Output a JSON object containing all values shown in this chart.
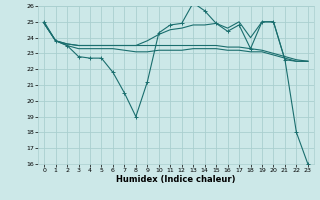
{
  "xlabel": "Humidex (Indice chaleur)",
  "xlim": [
    -0.5,
    23.5
  ],
  "ylim": [
    16,
    26
  ],
  "yticks": [
    16,
    17,
    18,
    19,
    20,
    21,
    22,
    23,
    24,
    25,
    26
  ],
  "xticks": [
    0,
    1,
    2,
    3,
    4,
    5,
    6,
    7,
    8,
    9,
    10,
    11,
    12,
    13,
    14,
    15,
    16,
    17,
    18,
    19,
    20,
    21,
    22,
    23
  ],
  "bg_color": "#cce8e8",
  "line_color": "#1a6e6e",
  "grid_color": "#aacfcf",
  "series": {
    "line1_x": [
      0,
      1,
      2,
      3,
      4,
      5,
      6,
      7,
      8,
      9,
      10,
      11,
      12,
      13,
      14,
      15,
      16,
      17,
      18,
      19,
      20,
      21,
      22,
      23
    ],
    "line1_y": [
      25.0,
      23.8,
      23.5,
      22.8,
      22.7,
      22.7,
      21.8,
      20.5,
      19.0,
      21.2,
      24.3,
      24.8,
      24.9,
      26.2,
      25.7,
      24.9,
      24.4,
      24.8,
      23.3,
      25.0,
      25.0,
      22.6,
      18.0,
      16.0
    ],
    "line2_x": [
      0,
      1,
      2,
      3,
      4,
      5,
      6,
      7,
      8,
      9,
      10,
      11,
      12,
      13,
      14,
      15,
      16,
      17,
      18,
      19,
      20,
      21,
      22,
      23
    ],
    "line2_y": [
      24.9,
      23.8,
      23.5,
      23.3,
      23.3,
      23.3,
      23.3,
      23.2,
      23.1,
      23.1,
      23.2,
      23.2,
      23.2,
      23.3,
      23.3,
      23.3,
      23.2,
      23.2,
      23.1,
      23.1,
      22.9,
      22.7,
      22.5,
      22.5
    ],
    "line3_x": [
      0,
      1,
      2,
      3,
      4,
      5,
      6,
      7,
      8,
      9,
      10,
      11,
      12,
      13,
      14,
      15,
      16,
      17,
      18,
      19,
      20,
      21,
      22,
      23
    ],
    "line3_y": [
      24.9,
      23.8,
      23.6,
      23.5,
      23.5,
      23.5,
      23.5,
      23.5,
      23.5,
      23.8,
      24.2,
      24.5,
      24.6,
      24.8,
      24.8,
      24.9,
      24.6,
      25.0,
      24.0,
      25.0,
      25.0,
      22.6,
      22.5,
      22.5
    ],
    "line4_x": [
      0,
      1,
      2,
      3,
      4,
      5,
      6,
      7,
      8,
      9,
      10,
      11,
      12,
      13,
      14,
      15,
      16,
      17,
      18,
      19,
      20,
      21,
      22,
      23
    ],
    "line4_y": [
      24.9,
      23.8,
      23.6,
      23.5,
      23.5,
      23.5,
      23.5,
      23.5,
      23.5,
      23.5,
      23.5,
      23.5,
      23.5,
      23.5,
      23.5,
      23.5,
      23.4,
      23.4,
      23.3,
      23.2,
      23.0,
      22.8,
      22.6,
      22.5
    ]
  }
}
